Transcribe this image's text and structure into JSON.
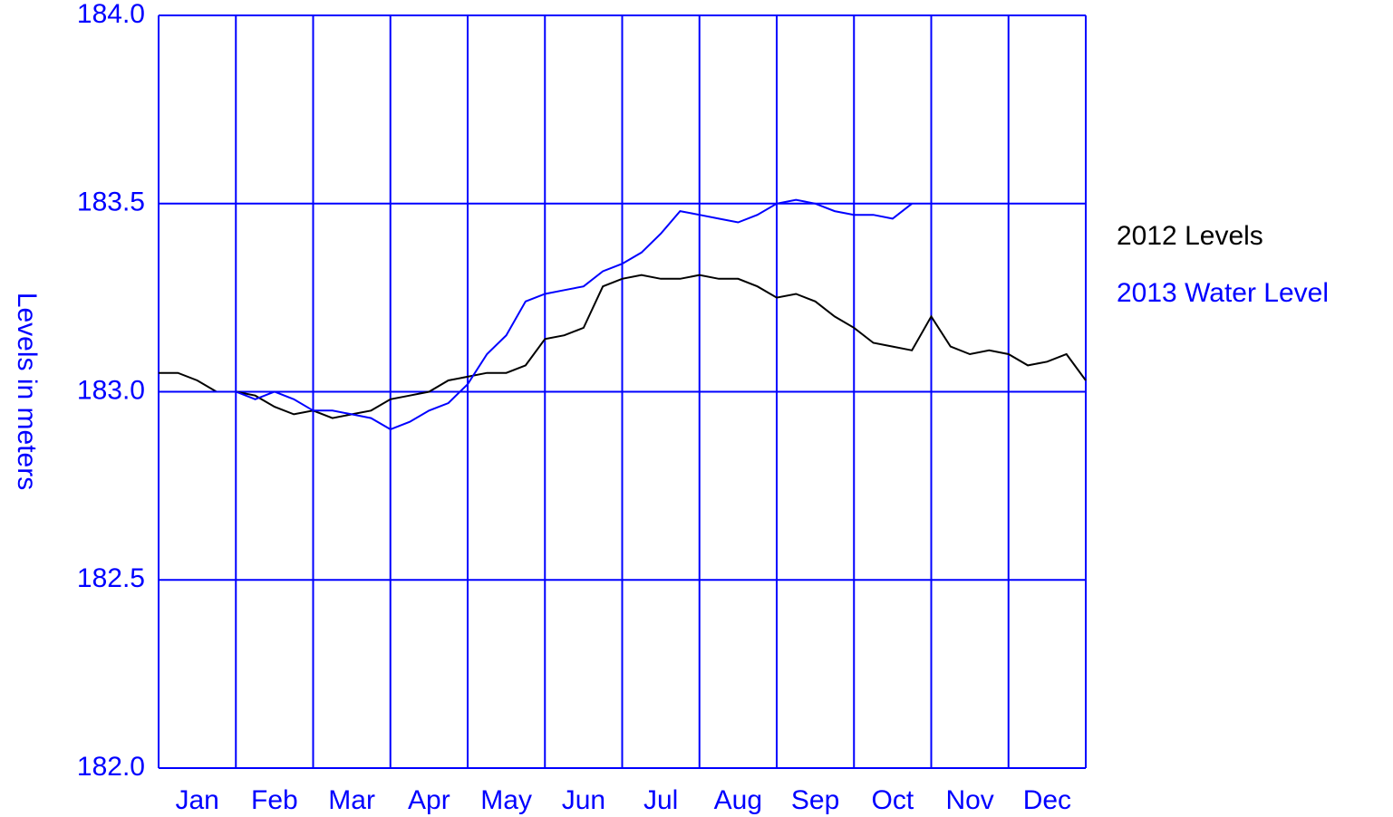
{
  "chart_data": {
    "type": "line",
    "y_label": "Levels in meters",
    "categories": [
      "Jan",
      "Feb",
      "Mar",
      "Apr",
      "May",
      "Jun",
      "Jul",
      "Aug",
      "Sep",
      "Oct",
      "Nov",
      "Dec"
    ],
    "x": [
      0,
      0.25,
      0.5,
      0.75,
      1,
      1.25,
      1.5,
      1.75,
      2,
      2.25,
      2.5,
      2.75,
      3,
      3.25,
      3.5,
      3.75,
      4,
      4.25,
      4.5,
      4.75,
      5,
      5.25,
      5.5,
      5.75,
      6,
      6.25,
      6.5,
      6.75,
      7,
      7.25,
      7.5,
      7.75,
      8,
      8.25,
      8.5,
      8.75,
      9,
      9.25,
      9.5,
      9.75,
      10,
      10.25,
      10.5,
      10.75,
      11,
      11.25,
      11.5,
      11.75,
      12
    ],
    "xlim": [
      0,
      12
    ],
    "xticks": [
      0,
      1,
      2,
      3,
      4,
      5,
      6,
      7,
      8,
      9,
      10,
      11,
      12
    ],
    "ylim": [
      182,
      184
    ],
    "yticks": [
      {
        "value": 182,
        "label": "182.0"
      },
      {
        "value": 182.5,
        "label": "182.5"
      },
      {
        "value": 183,
        "label": "183.0"
      },
      {
        "value": 183.5,
        "label": "183.5"
      },
      {
        "value": 184,
        "label": "184.0"
      }
    ],
    "grid": true,
    "grid_color": "#0000ff",
    "legend": "right",
    "series": [
      {
        "name": "2012 Levels",
        "color": "#000000",
        "values": [
          183.05,
          183.05,
          183.03,
          183.0,
          183.0,
          182.99,
          182.96,
          182.94,
          182.95,
          182.93,
          182.94,
          182.95,
          182.98,
          182.99,
          183.0,
          183.03,
          183.04,
          183.05,
          183.05,
          183.07,
          183.14,
          183.15,
          183.17,
          183.28,
          183.3,
          183.31,
          183.3,
          183.3,
          183.31,
          183.3,
          183.3,
          183.28,
          183.25,
          183.26,
          183.24,
          183.2,
          183.17,
          183.13,
          183.12,
          183.11,
          183.2,
          183.12,
          183.1,
          183.11,
          183.1,
          183.07,
          183.08,
          183.1,
          183.03
        ]
      },
      {
        "name": "2013 Water Level",
        "color": "#0000ff",
        "values": [
          183.0,
          183.0,
          183.0,
          183.0,
          183.0,
          182.98,
          183.0,
          182.98,
          182.95,
          182.95,
          182.94,
          182.93,
          182.9,
          182.92,
          182.95,
          182.97,
          183.02,
          183.1,
          183.15,
          183.24,
          183.26,
          183.27,
          183.28,
          183.32,
          183.34,
          183.37,
          183.42,
          183.48,
          183.47,
          183.46,
          183.45,
          183.47,
          183.5,
          183.51,
          183.5,
          183.48,
          183.47,
          183.47,
          183.46,
          183.5,
          null,
          null,
          null,
          null,
          null,
          null,
          null,
          null,
          null
        ]
      }
    ]
  }
}
